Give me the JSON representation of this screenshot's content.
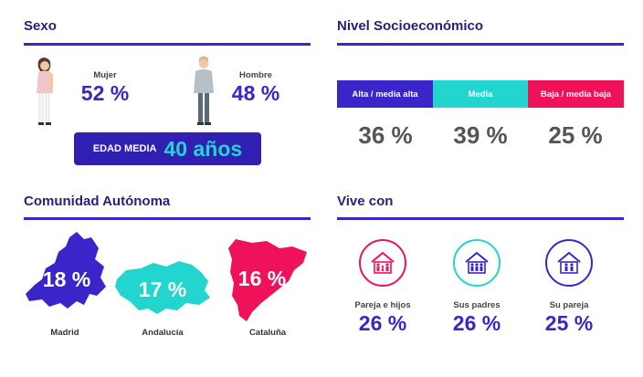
{
  "sexo": {
    "title": "Sexo",
    "mujer": {
      "label": "Mujer",
      "pct": "52 %"
    },
    "hombre": {
      "label": "Hombre",
      "pct": "48 %"
    },
    "edad_media": {
      "label": "EDAD MEDIA",
      "value": "40 años"
    }
  },
  "nivel": {
    "title": "Nivel Socioeconómico",
    "segments": [
      {
        "label": "Alta / media alta",
        "pct": "36 %",
        "color": "#3a25c9"
      },
      {
        "label": "Media",
        "pct": "39 %",
        "color": "#22d6cf"
      },
      {
        "label": "Baja / media baja",
        "pct": "25 %",
        "color": "#f0115b"
      }
    ]
  },
  "comunidad": {
    "title": "Comunidad Autónoma",
    "regions": [
      {
        "label": "Madrid",
        "pct": "18 %",
        "color": "#3a25c9"
      },
      {
        "label": "Andalucía",
        "pct": "17 %",
        "color": "#22d6cf"
      },
      {
        "label": "Cataluña",
        "pct": "16 %",
        "color": "#f0115b"
      }
    ]
  },
  "vive": {
    "title": "Vive con",
    "items": [
      {
        "label": "Pareja e hijos",
        "pct": "26 %",
        "color": "#f0115b",
        "icon": "house-family-icon"
      },
      {
        "label": "Sus padres",
        "pct": "26 %",
        "color": "#22d6cf",
        "icon": "house-parents-icon"
      },
      {
        "label": "Su pareja",
        "pct": "25 %",
        "color": "#3a25c9",
        "icon": "house-couple-icon"
      }
    ]
  },
  "chart_data": [
    {
      "type": "bar",
      "title": "Sexo",
      "categories": [
        "Mujer",
        "Hombre"
      ],
      "values": [
        52,
        48
      ]
    },
    {
      "type": "bar",
      "title": "Nivel Socioeconómico",
      "categories": [
        "Alta / media alta",
        "Media",
        "Baja / media baja"
      ],
      "values": [
        36,
        39,
        25
      ]
    },
    {
      "type": "bar",
      "title": "Comunidad Autónoma",
      "categories": [
        "Madrid",
        "Andalucía",
        "Cataluña"
      ],
      "values": [
        18,
        17,
        16
      ]
    },
    {
      "type": "bar",
      "title": "Vive con",
      "categories": [
        "Pareja e hijos",
        "Sus padres",
        "Su pareja"
      ],
      "values": [
        26,
        26,
        25
      ]
    }
  ]
}
